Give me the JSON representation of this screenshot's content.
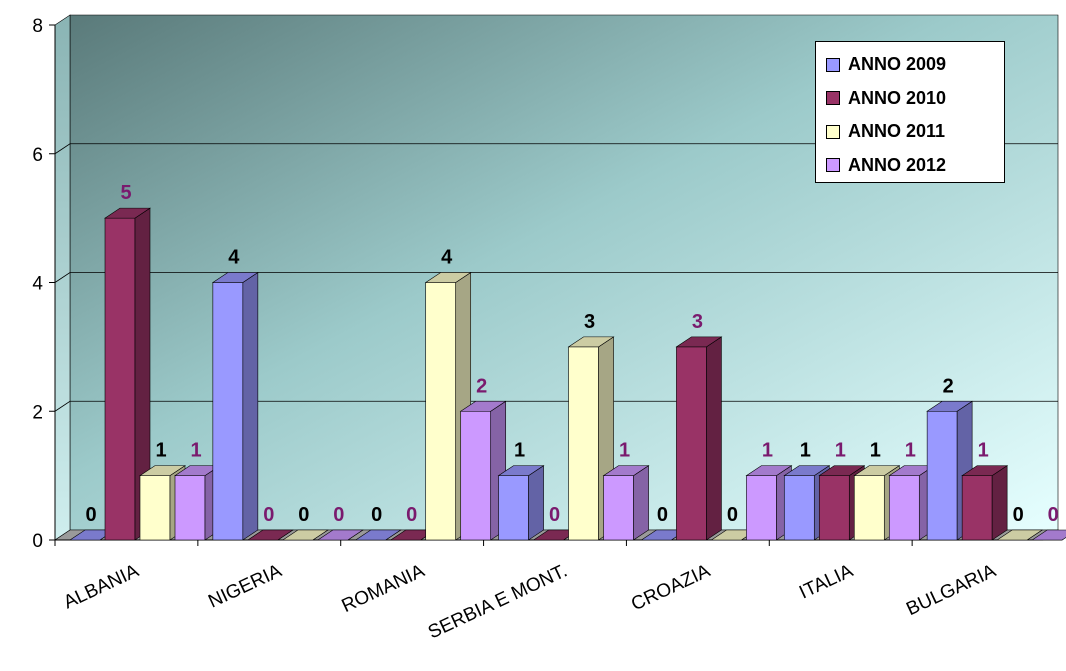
{
  "chart_data": {
    "type": "bar",
    "categories": [
      "ALBANIA",
      "NIGERIA",
      "ROMANIA",
      "SERBIA E MONT.",
      "CROAZIA",
      "ITALIA",
      "BULGARIA"
    ],
    "series": [
      {
        "name": "ANNO 2009",
        "values": [
          0,
          4,
          0,
          1,
          0,
          1,
          2
        ],
        "color": "#9999ff",
        "label_color": "#000000"
      },
      {
        "name": "ANNO 2010",
        "values": [
          5,
          0,
          0,
          0,
          3,
          1,
          1
        ],
        "color": "#993366",
        "label_color": "#7a1a6e"
      },
      {
        "name": "ANNO 2011",
        "values": [
          1,
          0,
          4,
          3,
          0,
          1,
          0
        ],
        "color": "#ffffcc",
        "label_color": "#000000"
      },
      {
        "name": "ANNO 2012",
        "values": [
          1,
          0,
          2,
          1,
          1,
          1,
          0
        ],
        "color": "#cc99ff",
        "label_color": "#7a1a6e"
      }
    ],
    "ylim": [
      0,
      8
    ],
    "yticks": [
      "0",
      "2",
      "4",
      "6",
      "8"
    ],
    "grid": true,
    "legend_position": "top-right",
    "chart_style": "3d-column",
    "title": "",
    "xlabel": "",
    "ylabel": ""
  }
}
